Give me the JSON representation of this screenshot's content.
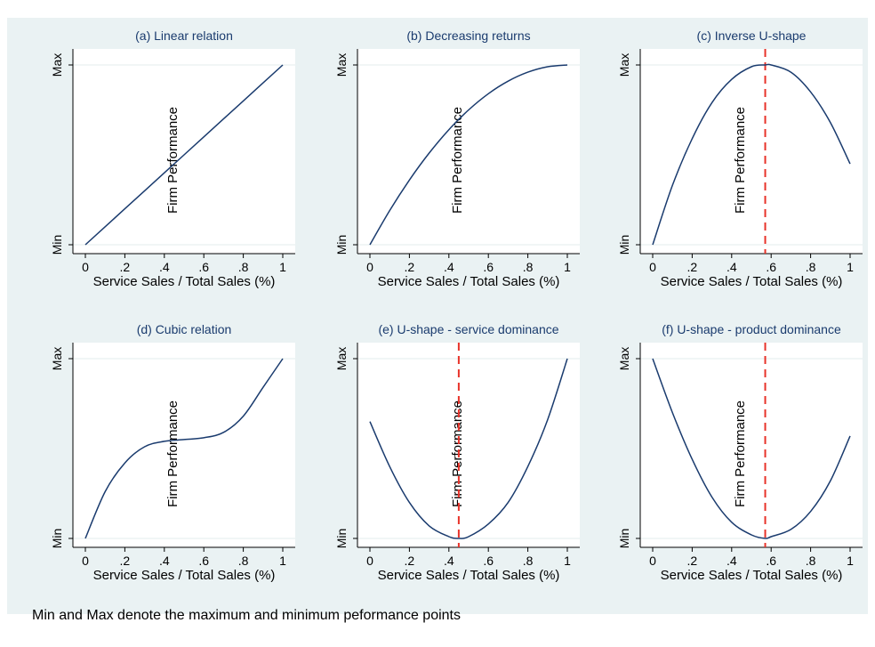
{
  "page": {
    "frame_bg": "#eaf2f3",
    "plot_bg": "#ffffff",
    "curve_color": "#1a3b6e",
    "ref_line_color": "#e8332a",
    "title_color": "#1a3b6e",
    "note": "Min and Max denote the maximum and minimum peformance points"
  },
  "chart_data": [
    {
      "id": "a",
      "type": "line",
      "title": "(a) Linear relation",
      "xlabel": "Service Sales / Total Sales (%)",
      "ylabel": "Firm Performance",
      "xlim": [
        0,
        1
      ],
      "ylim": [
        0,
        1
      ],
      "x_ticks": [
        "0",
        ".2",
        ".4",
        ".6",
        ".8",
        "1"
      ],
      "y_ticks": [
        "Min",
        "Max"
      ],
      "series": [
        {
          "x": [
            0,
            0.2,
            0.4,
            0.6,
            0.8,
            1.0
          ],
          "y": [
            0,
            0.2,
            0.4,
            0.6,
            0.8,
            1.0
          ]
        }
      ],
      "vline": null
    },
    {
      "id": "b",
      "type": "line",
      "title": "(b) Decreasing returns",
      "xlabel": "Service Sales / Total Sales (%)",
      "ylabel": "Firm Performance",
      "xlim": [
        0,
        1
      ],
      "ylim": [
        0,
        1
      ],
      "x_ticks": [
        "0",
        ".2",
        ".4",
        ".6",
        ".8",
        "1"
      ],
      "y_ticks": [
        "Min",
        "Max"
      ],
      "series": [
        {
          "x": [
            0,
            0.1,
            0.2,
            0.3,
            0.4,
            0.5,
            0.6,
            0.7,
            0.8,
            0.9,
            1.0
          ],
          "y": [
            0,
            0.19,
            0.36,
            0.51,
            0.64,
            0.75,
            0.84,
            0.91,
            0.96,
            0.99,
            1.0
          ]
        }
      ],
      "vline": null
    },
    {
      "id": "c",
      "type": "line",
      "title": "(c) Inverse U-shape",
      "xlabel": "Service Sales / Total Sales (%)",
      "ylabel": "Firm Performance",
      "xlim": [
        0,
        1
      ],
      "ylim": [
        0,
        1
      ],
      "x_ticks": [
        "0",
        ".2",
        ".4",
        ".6",
        ".8",
        "1"
      ],
      "y_ticks": [
        "Min",
        "Max"
      ],
      "series": [
        {
          "x": [
            0,
            0.1,
            0.2,
            0.3,
            0.4,
            0.5,
            0.57,
            0.6,
            0.7,
            0.8,
            0.9,
            1.0
          ],
          "y": [
            0,
            0.33,
            0.59,
            0.79,
            0.92,
            0.99,
            1.0,
            1.0,
            0.96,
            0.85,
            0.68,
            0.45
          ]
        }
      ],
      "vline": 0.57
    },
    {
      "id": "d",
      "type": "line",
      "title": "(d) Cubic relation",
      "xlabel": "Service Sales / Total Sales (%)",
      "ylabel": "Firm Performance",
      "xlim": [
        0,
        1
      ],
      "ylim": [
        0,
        1
      ],
      "x_ticks": [
        "0",
        ".2",
        ".4",
        ".6",
        ".8",
        "1"
      ],
      "y_ticks": [
        "Min",
        "Max"
      ],
      "series": [
        {
          "x": [
            0,
            0.1,
            0.2,
            0.3,
            0.4,
            0.5,
            0.6,
            0.7,
            0.8,
            0.9,
            1.0
          ],
          "y": [
            0,
            0.26,
            0.42,
            0.51,
            0.54,
            0.55,
            0.56,
            0.59,
            0.68,
            0.84,
            1.0
          ]
        }
      ],
      "vline": null
    },
    {
      "id": "e",
      "type": "line",
      "title": "(e) U-shape - service dominance",
      "xlabel": "Service Sales / Total Sales (%)",
      "ylabel": "Firm Performance",
      "xlim": [
        0,
        1
      ],
      "ylim": [
        0,
        1
      ],
      "x_ticks": [
        "0",
        ".2",
        ".4",
        ".6",
        ".8",
        "1"
      ],
      "y_ticks": [
        "Min",
        "Max"
      ],
      "series": [
        {
          "x": [
            0,
            0.1,
            0.2,
            0.3,
            0.4,
            0.45,
            0.5,
            0.6,
            0.7,
            0.8,
            0.9,
            1.0
          ],
          "y": [
            0.65,
            0.4,
            0.2,
            0.07,
            0.01,
            0,
            0.01,
            0.08,
            0.2,
            0.4,
            0.66,
            1.0
          ]
        }
      ],
      "vline": 0.45
    },
    {
      "id": "f",
      "type": "line",
      "title": "(f) U-shape - product dominance",
      "xlabel": "Service Sales / Total Sales (%)",
      "ylabel": "Firm Performance",
      "xlim": [
        0,
        1
      ],
      "ylim": [
        0,
        1
      ],
      "x_ticks": [
        "0",
        ".2",
        ".4",
        ".6",
        ".8",
        "1"
      ],
      "y_ticks": [
        "Min",
        "Max"
      ],
      "series": [
        {
          "x": [
            0,
            0.1,
            0.2,
            0.3,
            0.4,
            0.5,
            0.57,
            0.6,
            0.7,
            0.8,
            0.9,
            1.0
          ],
          "y": [
            1.0,
            0.7,
            0.44,
            0.23,
            0.09,
            0.02,
            0,
            0.01,
            0.05,
            0.15,
            0.32,
            0.57
          ]
        }
      ],
      "vline": 0.57
    }
  ]
}
